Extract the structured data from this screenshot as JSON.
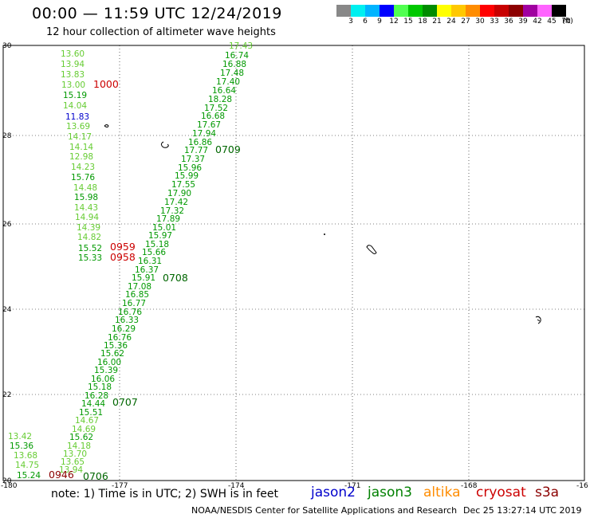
{
  "header": {
    "title": "00:00 — 11:59 UTC 12/24/2019",
    "subtitle": "12 hour collection of altimeter wave heights"
  },
  "legend": {
    "colors": [
      "#888888",
      "#00f0f0",
      "#00b4ff",
      "#0000ff",
      "#50ff50",
      "#00c800",
      "#008c00",
      "#ffff00",
      "#ffc800",
      "#ff8c00",
      "#ff0000",
      "#c80000",
      "#8c0000",
      "#a000a0",
      "#ff64ff",
      "#000000"
    ],
    "labels": [
      "3",
      "6",
      "9",
      "12",
      "15",
      "18",
      "21",
      "24",
      "27",
      "30",
      "33",
      "36",
      "39",
      "42",
      "45",
      "70",
      "(ft)"
    ]
  },
  "axes": {
    "x_ticks": [
      "-180",
      "-177",
      "-174",
      "-171",
      "-168",
      "-16"
    ],
    "y_ticks": [
      "30",
      "28",
      "26",
      "24",
      "22",
      "20"
    ]
  },
  "colors": {
    "jason2": "#0000cc",
    "jason3": "#008000",
    "altika": "#ff8c00",
    "cryosat": "#cc0000",
    "s3a": "#8b0000",
    "light": "#66cc33",
    "mid": "#009900",
    "dark": "#006600"
  },
  "readings": [
    {
      "text": "17.43",
      "c": "light"
    },
    {
      "text": "16.74",
      "c": "mid"
    },
    {
      "text": "16.88",
      "c": "mid"
    },
    {
      "text": "17.48",
      "c": "mid"
    },
    {
      "text": "17.40",
      "c": "mid"
    },
    {
      "text": "16.64",
      "c": "mid"
    },
    {
      "text": "18.28",
      "c": "mid"
    },
    {
      "text": "17.52",
      "c": "mid"
    },
    {
      "text": "16.68",
      "c": "mid"
    },
    {
      "text": "17.67",
      "c": "mid"
    },
    {
      "text": "17.94",
      "c": "mid"
    },
    {
      "text": "16.86",
      "c": "mid"
    },
    {
      "text": "17.77",
      "c": "mid"
    },
    {
      "text": "17.37",
      "c": "mid"
    },
    {
      "text": "15.96",
      "c": "mid"
    },
    {
      "text": "15.99",
      "c": "mid"
    },
    {
      "text": "17.55",
      "c": "mid"
    },
    {
      "text": "17.90",
      "c": "mid"
    },
    {
      "text": "17.42",
      "c": "mid"
    },
    {
      "text": "17.32",
      "c": "mid"
    },
    {
      "text": "17.89",
      "c": "mid"
    },
    {
      "text": "15.01",
      "c": "mid"
    },
    {
      "text": "15.97",
      "c": "mid"
    },
    {
      "text": "15.18",
      "c": "mid"
    },
    {
      "text": "15.66",
      "c": "mid"
    },
    {
      "text": "16.31",
      "c": "mid"
    },
    {
      "text": "16.37",
      "c": "mid"
    },
    {
      "text": "15.91",
      "c": "mid"
    },
    {
      "text": "17.08",
      "c": "mid"
    },
    {
      "text": "16.85",
      "c": "mid"
    },
    {
      "text": "16.77",
      "c": "mid"
    },
    {
      "text": "16.76",
      "c": "mid"
    },
    {
      "text": "16.33",
      "c": "mid"
    },
    {
      "text": "16.29",
      "c": "mid"
    },
    {
      "text": "16.76",
      "c": "mid"
    },
    {
      "text": "15.36",
      "c": "mid"
    },
    {
      "text": "15.62",
      "c": "mid"
    },
    {
      "text": "16.00",
      "c": "mid"
    },
    {
      "text": "15.39",
      "c": "mid"
    },
    {
      "text": "16.06",
      "c": "mid"
    },
    {
      "text": "15.18",
      "c": "mid"
    },
    {
      "text": "16.28",
      "c": "mid"
    },
    {
      "text": "14.44",
      "c": "mid"
    },
    {
      "text": "15.51",
      "c": "mid"
    },
    {
      "text": "14.67",
      "c": "light"
    },
    {
      "text": "14.69",
      "c": "light"
    },
    {
      "text": "15.62",
      "c": "mid"
    },
    {
      "text": "14.18",
      "c": "light"
    },
    {
      "text": "13.70",
      "c": "light"
    },
    {
      "text": "13.65",
      "c": "light"
    },
    {
      "text": "13.94",
      "c": "light"
    },
    {
      "text": "13.60",
      "c": "light"
    },
    {
      "text": "13.94",
      "c": "light"
    },
    {
      "text": "13.83",
      "c": "light"
    },
    {
      "text": "13.00",
      "c": "light"
    },
    {
      "text": "15.19",
      "c": "mid"
    },
    {
      "text": "14.04",
      "c": "light"
    },
    {
      "text": "11.83",
      "c": "jason2"
    },
    {
      "text": "13.69",
      "c": "light"
    },
    {
      "text": "14.17",
      "c": "light"
    },
    {
      "text": "14.14",
      "c": "light"
    },
    {
      "text": "12.98",
      "c": "light"
    },
    {
      "text": "14.23",
      "c": "light"
    },
    {
      "text": "15.76",
      "c": "mid"
    },
    {
      "text": "14.48",
      "c": "light"
    },
    {
      "text": "15.98",
      "c": "mid"
    },
    {
      "text": "14.43",
      "c": "light"
    },
    {
      "text": "14.94",
      "c": "light"
    },
    {
      "text": "14.39",
      "c": "light"
    },
    {
      "text": "14.82",
      "c": "light"
    },
    {
      "text": "15.52",
      "c": "mid"
    },
    {
      "text": "15.33",
      "c": "mid"
    },
    {
      "text": "13.42",
      "c": "light"
    },
    {
      "text": "15.36",
      "c": "mid"
    },
    {
      "text": "13.68",
      "c": "light"
    },
    {
      "text": "14.75",
      "c": "light"
    },
    {
      "text": "15.24",
      "c": "mid"
    }
  ],
  "time_labels": [
    {
      "text": "0709",
      "c": "dark"
    },
    {
      "text": "0708",
      "c": "dark"
    },
    {
      "text": "0707",
      "c": "dark"
    },
    {
      "text": "0706",
      "c": "dark"
    },
    {
      "text": "1000",
      "c": "cryosat"
    },
    {
      "text": "0959",
      "c": "cryosat"
    },
    {
      "text": "0958",
      "c": "cryosat"
    },
    {
      "text": "0946",
      "c": "s3a"
    }
  ],
  "footer": {
    "note": "note: 1) Time is in UTC; 2) SWH is in feet",
    "satellites": [
      {
        "name": "jason2",
        "color": "#0000cc"
      },
      {
        "name": "jason3",
        "color": "#008000"
      },
      {
        "name": "altika",
        "color": "#ff8c00"
      },
      {
        "name": "cryosat",
        "color": "#cc0000"
      },
      {
        "name": "s3a",
        "color": "#8b0000"
      }
    ],
    "credit": "NOAA/NESDIS Center for Satellite Applications and Research",
    "timestamp": "Dec 25 13:27:14 UTC 2019"
  }
}
